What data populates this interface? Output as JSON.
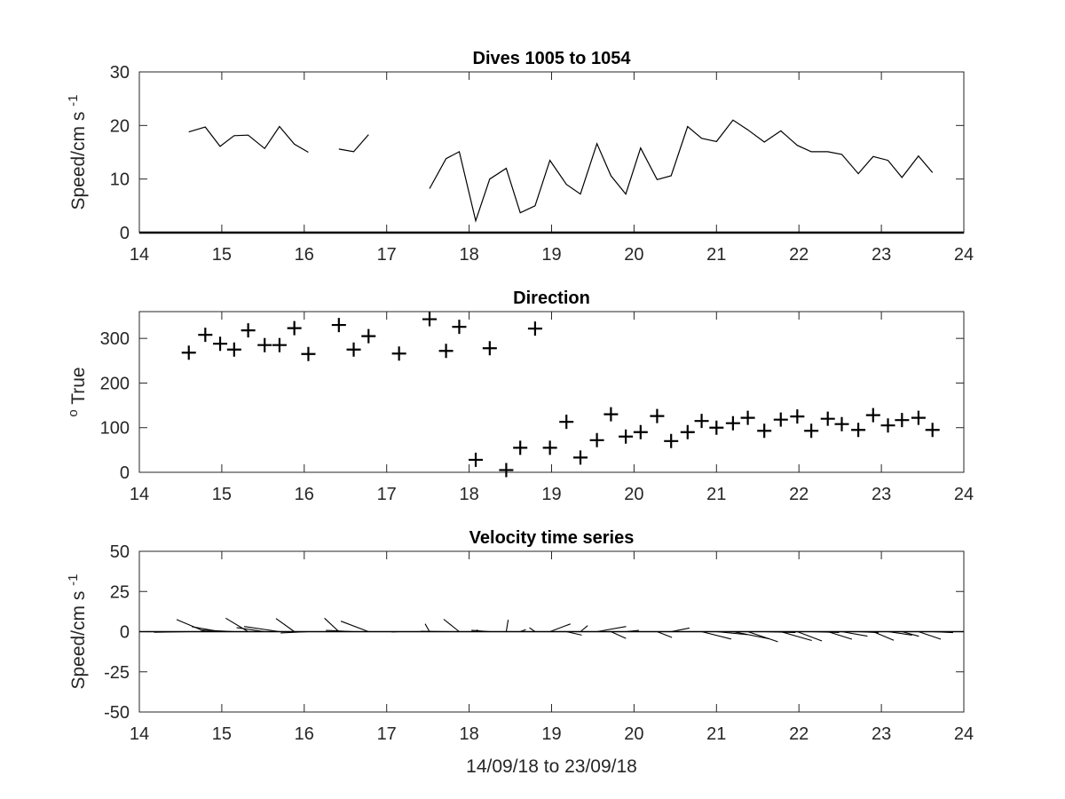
{
  "chart_data": [
    {
      "type": "line",
      "title": "Dives 1005 to 1054",
      "ylabel": "Speed/cm s",
      "ylabel_superscript": "-1",
      "xlim": [
        14,
        24
      ],
      "ylim": [
        0,
        30
      ],
      "xticks": [
        "14",
        "15",
        "16",
        "17",
        "18",
        "19",
        "20",
        "21",
        "22",
        "23",
        "24"
      ],
      "yticks": [
        "0",
        "10",
        "20",
        "30"
      ],
      "series": [
        {
          "segments": [
            [
              [
                14.6,
                18.8
              ],
              [
                14.8,
                19.7
              ],
              [
                14.98,
                16.1
              ],
              [
                15.15,
                18.1
              ],
              [
                15.32,
                18.2
              ],
              [
                15.52,
                15.7
              ],
              [
                15.7,
                19.8
              ],
              [
                15.88,
                16.5
              ],
              [
                16.05,
                15.0
              ]
            ],
            [
              [
                16.42,
                15.6
              ],
              [
                16.6,
                15.1
              ],
              [
                16.78,
                18.3
              ]
            ],
            [
              [
                17.52,
                8.2
              ],
              [
                17.72,
                13.8
              ],
              [
                17.88,
                15.1
              ],
              [
                18.08,
                2.2
              ],
              [
                18.25,
                10.0
              ],
              [
                18.45,
                12.0
              ],
              [
                18.62,
                3.7
              ],
              [
                18.8,
                5.0
              ],
              [
                18.98,
                13.5
              ],
              [
                19.18,
                9.0
              ],
              [
                19.35,
                7.2
              ],
              [
                19.55,
                16.6
              ],
              [
                19.72,
                10.6
              ],
              [
                19.9,
                7.2
              ],
              [
                20.08,
                15.8
              ],
              [
                20.28,
                9.9
              ],
              [
                20.45,
                10.6
              ],
              [
                20.65,
                19.8
              ],
              [
                20.82,
                17.6
              ],
              [
                21.0,
                17.0
              ],
              [
                21.2,
                21.0
              ],
              [
                21.38,
                19.2
              ],
              [
                21.58,
                16.9
              ],
              [
                21.78,
                19.0
              ],
              [
                21.98,
                16.3
              ],
              [
                22.15,
                15.1
              ],
              [
                22.35,
                15.1
              ],
              [
                22.52,
                14.6
              ],
              [
                22.72,
                11.0
              ],
              [
                22.9,
                14.2
              ],
              [
                23.08,
                13.5
              ],
              [
                23.25,
                10.3
              ],
              [
                23.45,
                14.3
              ],
              [
                23.62,
                11.2
              ]
            ]
          ]
        }
      ]
    },
    {
      "type": "scatter",
      "title": "Direction",
      "ylabel": "True",
      "ylabel_superscript": "o",
      "xlim": [
        14,
        24
      ],
      "ylim": [
        0,
        360
      ],
      "xticks": [
        "14",
        "15",
        "16",
        "17",
        "18",
        "19",
        "20",
        "21",
        "22",
        "23",
        "24"
      ],
      "yticks": [
        "0",
        "100",
        "200",
        "300"
      ],
      "marker": "+",
      "points": [
        [
          14.6,
          268
        ],
        [
          14.8,
          308
        ],
        [
          14.98,
          288
        ],
        [
          15.15,
          275
        ],
        [
          15.32,
          318
        ],
        [
          15.52,
          285
        ],
        [
          15.7,
          285
        ],
        [
          15.88,
          323
        ],
        [
          16.05,
          265
        ],
        [
          16.42,
          330
        ],
        [
          16.6,
          275
        ],
        [
          16.78,
          305
        ],
        [
          17.15,
          266
        ],
        [
          17.52,
          343
        ],
        [
          17.72,
          272
        ],
        [
          17.88,
          326
        ],
        [
          18.08,
          28
        ],
        [
          18.25,
          278
        ],
        [
          18.45,
          5
        ],
        [
          18.62,
          55
        ],
        [
          18.8,
          322
        ],
        [
          18.98,
          55
        ],
        [
          19.18,
          113
        ],
        [
          19.35,
          33
        ],
        [
          19.55,
          72
        ],
        [
          19.72,
          130
        ],
        [
          19.9,
          80
        ],
        [
          20.08,
          90
        ],
        [
          20.28,
          126
        ],
        [
          20.45,
          70
        ],
        [
          20.65,
          90
        ],
        [
          20.82,
          115
        ],
        [
          21.0,
          100
        ],
        [
          21.2,
          110
        ],
        [
          21.38,
          122
        ],
        [
          21.58,
          93
        ],
        [
          21.78,
          118
        ],
        [
          21.98,
          125
        ],
        [
          22.15,
          93
        ],
        [
          22.35,
          120
        ],
        [
          22.52,
          108
        ],
        [
          22.72,
          95
        ],
        [
          22.9,
          128
        ],
        [
          23.08,
          105
        ],
        [
          23.25,
          117
        ],
        [
          23.45,
          122
        ],
        [
          23.62,
          95
        ]
      ]
    },
    {
      "type": "line",
      "title": "Velocity time series",
      "ylabel": "Speed/cm s",
      "ylabel_superscript": "-1",
      "xlabel": "14/09/18 to 23/09/18",
      "xlim": [
        14,
        24
      ],
      "ylim": [
        -50,
        50
      ],
      "xticks": [
        "14",
        "15",
        "16",
        "17",
        "18",
        "19",
        "20",
        "21",
        "22",
        "23",
        "24"
      ],
      "yticks": [
        "-50",
        "-25",
        "0",
        "25",
        "50"
      ],
      "note": "stick plot: each stick starts on the zero line at its time and points along the velocity",
      "sticks": [
        [
          14.1,
          0.9
        ],
        [
          14.25,
          0.7
        ],
        [
          14.6,
          18.8,
          268
        ],
        [
          14.8,
          19.7,
          308
        ],
        [
          14.98,
          16.1,
          288
        ],
        [
          15.15,
          18.1,
          275
        ],
        [
          15.32,
          18.2,
          318
        ],
        [
          15.52,
          15.7,
          285
        ],
        [
          15.7,
          19.8,
          285
        ],
        [
          15.88,
          16.5,
          323
        ],
        [
          16.05,
          15.0,
          265
        ],
        [
          16.42,
          15.6,
          330
        ],
        [
          16.6,
          15.1,
          275
        ],
        [
          16.78,
          18.3,
          305
        ],
        [
          17.15,
          4.0,
          266
        ],
        [
          17.52,
          8.2,
          343
        ],
        [
          17.72,
          13.8,
          272
        ],
        [
          17.88,
          15.1,
          326
        ],
        [
          18.08,
          2.2,
          28
        ],
        [
          18.25,
          10.0,
          278
        ],
        [
          18.45,
          12.0,
          5
        ],
        [
          18.62,
          3.7,
          55
        ],
        [
          18.8,
          5.0,
          322
        ],
        [
          18.98,
          13.5,
          55
        ],
        [
          19.18,
          9.0,
          113
        ],
        [
          19.35,
          7.2,
          33
        ],
        [
          19.55,
          16.6,
          72
        ],
        [
          19.72,
          10.6,
          130
        ],
        [
          19.9,
          7.2,
          80
        ],
        [
          20.08,
          15.8,
          90
        ],
        [
          20.28,
          9.9,
          126
        ],
        [
          20.45,
          10.6,
          70
        ],
        [
          20.65,
          19.8,
          90
        ],
        [
          20.82,
          17.6,
          115
        ],
        [
          21.0,
          17.0,
          100
        ],
        [
          21.2,
          21.0,
          110
        ],
        [
          21.38,
          19.2,
          122
        ],
        [
          21.58,
          16.9,
          93
        ],
        [
          21.78,
          19.0,
          118
        ],
        [
          21.98,
          16.3,
          125
        ],
        [
          22.15,
          15.1,
          93
        ],
        [
          22.35,
          15.1,
          120
        ],
        [
          22.52,
          14.6,
          108
        ],
        [
          22.72,
          11.0,
          95
        ],
        [
          22.9,
          14.2,
          128
        ],
        [
          23.08,
          13.5,
          105
        ],
        [
          23.25,
          10.3,
          117
        ],
        [
          23.45,
          14.3,
          122
        ],
        [
          23.62,
          11.2,
          95
        ]
      ]
    }
  ]
}
